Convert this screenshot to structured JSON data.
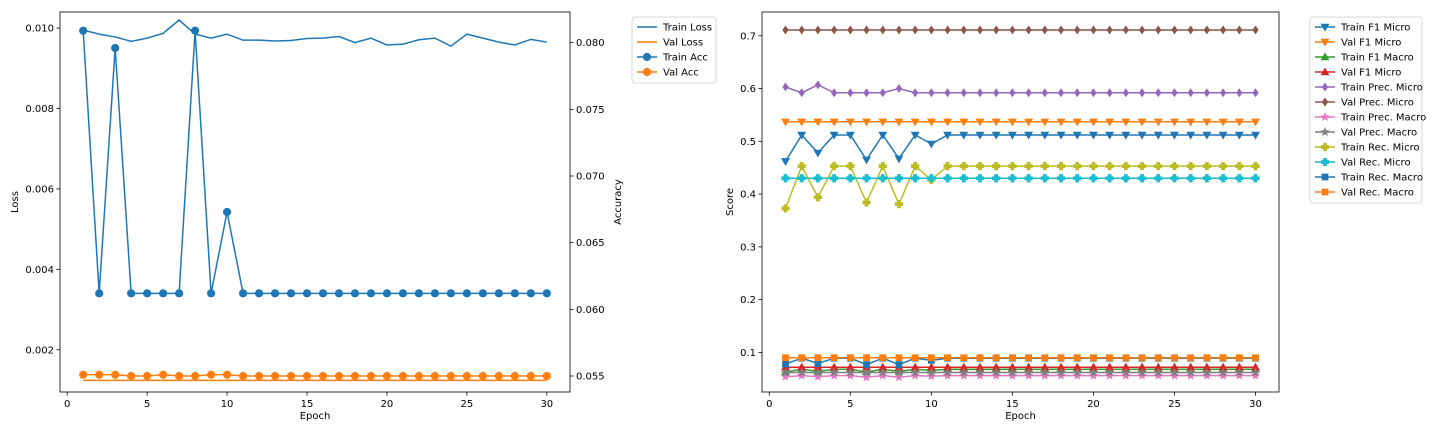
{
  "colors": {
    "blue": "#1f77b4",
    "orange": "#ff7f0e",
    "green": "#2ca02c",
    "red": "#d62728",
    "purple": "#9467bd",
    "brown": "#8c564b",
    "pink": "#e377c2",
    "gray": "#7f7f7f",
    "olive": "#bcbd22",
    "cyan": "#17becf"
  },
  "chart_data": [
    {
      "type": "line",
      "title": "",
      "xlabel": "Epoch",
      "ylabel": "Loss",
      "y2label": "Accuracy",
      "xlim": [
        -0.45,
        31.45
      ],
      "ylim": [
        0.00095,
        0.0104
      ],
      "y2lim": [
        0.0538,
        0.0823
      ],
      "xticks": [
        0,
        5,
        10,
        15,
        20,
        25,
        30
      ],
      "yticks": [
        0.002,
        0.004,
        0.006,
        0.008,
        0.01
      ],
      "y2ticks": [
        0.055,
        0.06,
        0.065,
        0.07,
        0.075,
        0.08
      ],
      "legend_position": "outside-upper-right",
      "x": [
        1,
        2,
        3,
        4,
        5,
        6,
        7,
        8,
        9,
        10,
        11,
        12,
        13,
        14,
        15,
        16,
        17,
        18,
        19,
        20,
        21,
        22,
        23,
        24,
        25,
        26,
        27,
        28,
        29,
        30
      ],
      "series": [
        {
          "name": "Train Loss",
          "axis": "left",
          "color": "blue",
          "marker": "none",
          "values": [
            0.00995,
            0.00985,
            0.00978,
            0.00967,
            0.00975,
            0.00987,
            0.0102,
            0.00985,
            0.00975,
            0.00985,
            0.0097,
            0.0097,
            0.00968,
            0.00969,
            0.00974,
            0.00975,
            0.00979,
            0.00964,
            0.00975,
            0.00958,
            0.0096,
            0.00971,
            0.00975,
            0.00955,
            0.00985,
            0.00975,
            0.00965,
            0.00958,
            0.00972,
            0.00965
          ]
        },
        {
          "name": "Val Loss",
          "axis": "left",
          "color": "orange",
          "marker": "none",
          "values": [
            0.00124,
            0.00124,
            0.00124,
            0.00124,
            0.00124,
            0.00124,
            0.00124,
            0.00124,
            0.00124,
            0.00124,
            0.00124,
            0.00124,
            0.00124,
            0.00124,
            0.00124,
            0.00124,
            0.00124,
            0.00124,
            0.00124,
            0.00124,
            0.00124,
            0.00124,
            0.00124,
            0.00124,
            0.00124,
            0.00124,
            0.00124,
            0.00124,
            0.00124,
            0.00124
          ]
        },
        {
          "name": "Train Acc",
          "axis": "right",
          "color": "blue",
          "marker": "o",
          "values": [
            0.0809,
            0.0612,
            0.0796,
            0.0612,
            0.0612,
            0.0612,
            0.0612,
            0.0809,
            0.0612,
            0.0673,
            0.0612,
            0.0612,
            0.0612,
            0.0612,
            0.0612,
            0.0612,
            0.0612,
            0.0612,
            0.0612,
            0.0612,
            0.0612,
            0.0612,
            0.0612,
            0.0612,
            0.0612,
            0.0612,
            0.0612,
            0.0612,
            0.0612,
            0.0612
          ]
        },
        {
          "name": "Val Acc",
          "axis": "right",
          "color": "orange",
          "marker": "o",
          "values": [
            0.0551,
            0.0551,
            0.0551,
            0.055,
            0.055,
            0.0551,
            0.055,
            0.055,
            0.0551,
            0.0551,
            0.055,
            0.055,
            0.055,
            0.055,
            0.055,
            0.055,
            0.055,
            0.055,
            0.055,
            0.055,
            0.055,
            0.055,
            0.055,
            0.055,
            0.055,
            0.055,
            0.055,
            0.055,
            0.055,
            0.055
          ]
        }
      ]
    },
    {
      "type": "line",
      "title": "",
      "xlabel": "Epoch",
      "ylabel": "Score",
      "xlim": [
        -0.45,
        31.45
      ],
      "ylim": [
        0.025,
        0.745
      ],
      "xticks": [
        0,
        5,
        10,
        15,
        20,
        25,
        30
      ],
      "yticks": [
        0.1,
        0.2,
        0.3,
        0.4,
        0.5,
        0.6,
        0.7
      ],
      "legend_position": "outside-upper-right",
      "x": [
        1,
        2,
        3,
        4,
        5,
        6,
        7,
        8,
        9,
        10,
        11,
        12,
        13,
        14,
        15,
        16,
        17,
        18,
        19,
        20,
        21,
        22,
        23,
        24,
        25,
        26,
        27,
        28,
        29,
        30
      ],
      "series": [
        {
          "name": "Train F1 Micro",
          "color": "blue",
          "marker": "v",
          "values": [
            0.462,
            0.512,
            0.478,
            0.512,
            0.512,
            0.465,
            0.512,
            0.467,
            0.512,
            0.495,
            0.512,
            0.512,
            0.512,
            0.512,
            0.512,
            0.512,
            0.512,
            0.512,
            0.512,
            0.512,
            0.512,
            0.512,
            0.512,
            0.512,
            0.512,
            0.512,
            0.512,
            0.512,
            0.512,
            0.512
          ]
        },
        {
          "name": "Val F1 Micro",
          "color": "orange",
          "marker": "v",
          "values": [
            0.537,
            0.537,
            0.537,
            0.537,
            0.537,
            0.537,
            0.537,
            0.537,
            0.537,
            0.537,
            0.537,
            0.537,
            0.537,
            0.537,
            0.537,
            0.537,
            0.537,
            0.537,
            0.537,
            0.537,
            0.537,
            0.537,
            0.537,
            0.537,
            0.537,
            0.537,
            0.537,
            0.537,
            0.537,
            0.537
          ]
        },
        {
          "name": "Train F1 Macro",
          "color": "green",
          "marker": "^",
          "values": [
            0.063,
            0.068,
            0.064,
            0.068,
            0.068,
            0.063,
            0.068,
            0.064,
            0.068,
            0.066,
            0.068,
            0.068,
            0.068,
            0.068,
            0.068,
            0.068,
            0.068,
            0.068,
            0.068,
            0.068,
            0.068,
            0.068,
            0.068,
            0.068,
            0.068,
            0.068,
            0.068,
            0.068,
            0.068,
            0.068
          ]
        },
        {
          "name": "Val F1 Micro",
          "color": "red",
          "marker": "^",
          "values": [
            0.072,
            0.072,
            0.072,
            0.072,
            0.072,
            0.072,
            0.072,
            0.072,
            0.072,
            0.072,
            0.072,
            0.072,
            0.072,
            0.072,
            0.072,
            0.072,
            0.072,
            0.072,
            0.072,
            0.072,
            0.072,
            0.072,
            0.072,
            0.072,
            0.072,
            0.072,
            0.072,
            0.072,
            0.072,
            0.072
          ]
        },
        {
          "name": "Train Prec. Micro",
          "color": "purple",
          "marker": "d",
          "values": [
            0.603,
            0.592,
            0.607,
            0.592,
            0.592,
            0.592,
            0.592,
            0.6,
            0.592,
            0.592,
            0.592,
            0.592,
            0.592,
            0.592,
            0.592,
            0.592,
            0.592,
            0.592,
            0.592,
            0.592,
            0.592,
            0.592,
            0.592,
            0.592,
            0.592,
            0.592,
            0.592,
            0.592,
            0.592,
            0.592
          ]
        },
        {
          "name": "Val Prec. Micro",
          "color": "brown",
          "marker": "d",
          "values": [
            0.711,
            0.711,
            0.711,
            0.711,
            0.711,
            0.711,
            0.711,
            0.711,
            0.711,
            0.711,
            0.711,
            0.711,
            0.711,
            0.711,
            0.711,
            0.711,
            0.711,
            0.711,
            0.711,
            0.711,
            0.711,
            0.711,
            0.711,
            0.711,
            0.711,
            0.711,
            0.711,
            0.711,
            0.711,
            0.711
          ]
        },
        {
          "name": "Train Prec. Macro",
          "color": "pink",
          "marker": "*",
          "values": [
            0.054,
            0.056,
            0.054,
            0.056,
            0.056,
            0.053,
            0.056,
            0.053,
            0.056,
            0.055,
            0.056,
            0.056,
            0.056,
            0.056,
            0.056,
            0.056,
            0.056,
            0.056,
            0.056,
            0.056,
            0.056,
            0.056,
            0.056,
            0.056,
            0.056,
            0.056,
            0.056,
            0.056,
            0.056,
            0.056
          ]
        },
        {
          "name": "Val Prec. Macro",
          "color": "gray",
          "marker": "*",
          "values": [
            0.062,
            0.062,
            0.062,
            0.062,
            0.062,
            0.062,
            0.062,
            0.062,
            0.062,
            0.062,
            0.062,
            0.062,
            0.062,
            0.062,
            0.062,
            0.062,
            0.062,
            0.062,
            0.062,
            0.062,
            0.062,
            0.062,
            0.062,
            0.062,
            0.062,
            0.062,
            0.062,
            0.062,
            0.062,
            0.062
          ]
        },
        {
          "name": "Train Rec. Micro",
          "color": "olive",
          "marker": "P",
          "values": [
            0.373,
            0.453,
            0.394,
            0.453,
            0.453,
            0.384,
            0.453,
            0.381,
            0.453,
            0.427,
            0.453,
            0.453,
            0.453,
            0.453,
            0.453,
            0.453,
            0.453,
            0.453,
            0.453,
            0.453,
            0.453,
            0.453,
            0.453,
            0.453,
            0.453,
            0.453,
            0.453,
            0.453,
            0.453,
            0.453
          ]
        },
        {
          "name": "Val Rec. Micro",
          "color": "cyan",
          "marker": "P",
          "values": [
            0.43,
            0.43,
            0.43,
            0.43,
            0.43,
            0.43,
            0.43,
            0.43,
            0.43,
            0.43,
            0.43,
            0.43,
            0.43,
            0.43,
            0.43,
            0.43,
            0.43,
            0.43,
            0.43,
            0.43,
            0.43,
            0.43,
            0.43,
            0.43,
            0.43,
            0.43,
            0.43,
            0.43,
            0.43,
            0.43
          ]
        },
        {
          "name": "Train Rec. Macro",
          "color": "blue",
          "marker": "s",
          "values": [
            0.078,
            0.089,
            0.079,
            0.089,
            0.089,
            0.077,
            0.089,
            0.077,
            0.089,
            0.085,
            0.089,
            0.089,
            0.089,
            0.089,
            0.089,
            0.089,
            0.089,
            0.089,
            0.089,
            0.089,
            0.089,
            0.089,
            0.089,
            0.089,
            0.089,
            0.089,
            0.089,
            0.089,
            0.089,
            0.089
          ]
        },
        {
          "name": "Val Rec. Macro",
          "color": "orange",
          "marker": "s",
          "values": [
            0.09,
            0.09,
            0.09,
            0.09,
            0.09,
            0.09,
            0.09,
            0.09,
            0.09,
            0.09,
            0.09,
            0.09,
            0.09,
            0.09,
            0.09,
            0.09,
            0.09,
            0.09,
            0.09,
            0.09,
            0.09,
            0.09,
            0.09,
            0.09,
            0.09,
            0.09,
            0.09,
            0.09,
            0.09,
            0.09
          ]
        }
      ]
    }
  ]
}
